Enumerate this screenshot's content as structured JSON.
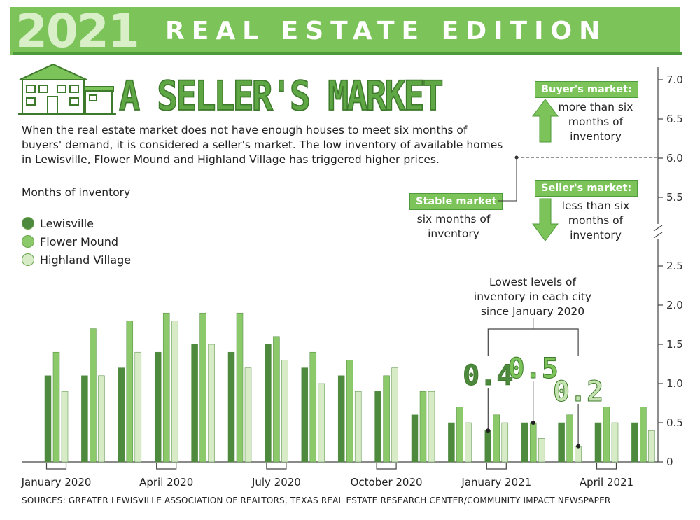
{
  "banner": {
    "year": "2021",
    "edition": "REAL ESTATE EDITION"
  },
  "headline": "A SELLER'S MARKET",
  "intro": "When the real estate market does not have enough houses to meet six months of buyers' demand, it is considered a seller's market. The low inventory of available homes in Lewisville, Flower Mound and Highland Village has triggered higher prices.",
  "subhead": "Months of inventory",
  "legend": [
    {
      "name": "Lewisville",
      "color": "#4e8a3e"
    },
    {
      "name": "Flower Mound",
      "color": "#8cc96a"
    },
    {
      "name": "Highland Village",
      "color": "#d6ebc6"
    }
  ],
  "callouts": {
    "buyer": {
      "label": "Buyer's market:",
      "text": "more than six months of inventory"
    },
    "seller": {
      "label": "Seller's market:",
      "text": "less than six months of inventory"
    },
    "stable": {
      "label": "Stable market",
      "text": "six months of inventory"
    },
    "lowest": "Lowest levels of inventory in each city since January 2020"
  },
  "sources": "SOURCES: GREATER LEWISVILLE ASSOCIATION OF REALTORS, TEXAS REAL ESTATE RESEARCH CENTER/COMMUNITY IMPACT NEWSPAPER",
  "chart_data": {
    "type": "bar",
    "ylabel": "Months of inventory",
    "categories": [
      "Jan 2020",
      "Feb 2020",
      "Mar 2020",
      "Apr 2020",
      "May 2020",
      "Jun 2020",
      "Jul 2020",
      "Aug 2020",
      "Sep 2020",
      "Oct 2020",
      "Nov 2020",
      "Dec 2020",
      "Jan 2021",
      "Feb 2021",
      "Mar 2021",
      "Apr 2021",
      "May 2021"
    ],
    "x_tick_labels": [
      {
        "label": "January 2020",
        "index": 0
      },
      {
        "label": "April 2020",
        "index": 3
      },
      {
        "label": "July 2020",
        "index": 6
      },
      {
        "label": "October 2020",
        "index": 9
      },
      {
        "label": "January 2021",
        "index": 12
      },
      {
        "label": "April 2021",
        "index": 15
      }
    ],
    "series": [
      {
        "name": "Lewisville",
        "values": [
          1.1,
          1.1,
          1.2,
          1.4,
          1.5,
          1.4,
          1.5,
          1.2,
          1.1,
          0.9,
          0.6,
          0.5,
          0.4,
          0.5,
          0.5,
          0.5,
          0.5
        ]
      },
      {
        "name": "Flower Mound",
        "values": [
          1.4,
          1.7,
          1.8,
          1.9,
          1.9,
          1.9,
          1.6,
          1.4,
          1.3,
          1.1,
          0.9,
          0.7,
          0.6,
          0.5,
          0.6,
          0.7,
          0.7
        ]
      },
      {
        "name": "Highland Village",
        "values": [
          0.9,
          1.1,
          1.4,
          1.8,
          1.5,
          1.2,
          1.3,
          1.0,
          0.9,
          1.2,
          0.9,
          0.5,
          0.5,
          0.3,
          0.2,
          0.5,
          0.4
        ]
      }
    ],
    "ylim_lower": [
      0,
      2.5
    ],
    "yticks_lower": [
      0,
      0.5,
      1.0,
      1.5,
      2.0,
      2.5
    ],
    "yticks_lower_labels": [
      "0",
      "0.5",
      "1.0",
      "1.5",
      "2.0",
      "2.5"
    ],
    "ylim_upper": [
      5.5,
      7.0
    ],
    "yticks_upper": [
      5.5,
      6.0,
      6.5,
      7.0
    ],
    "yticks_upper_labels": [
      "5.5",
      "6.0",
      "6.5",
      "7.0"
    ],
    "axis_break": true,
    "reference_line": 6.0,
    "lowest_points": [
      {
        "label": "0.4",
        "series": "Lewisville",
        "index": 12,
        "color": "#4e8a3e"
      },
      {
        "label": "0.5",
        "series": "Flower Mound",
        "index": 13,
        "color": "#7cc35a"
      },
      {
        "label": "0.2",
        "series": "Highland Village",
        "index": 14,
        "color": "#c5e3b0"
      }
    ]
  }
}
